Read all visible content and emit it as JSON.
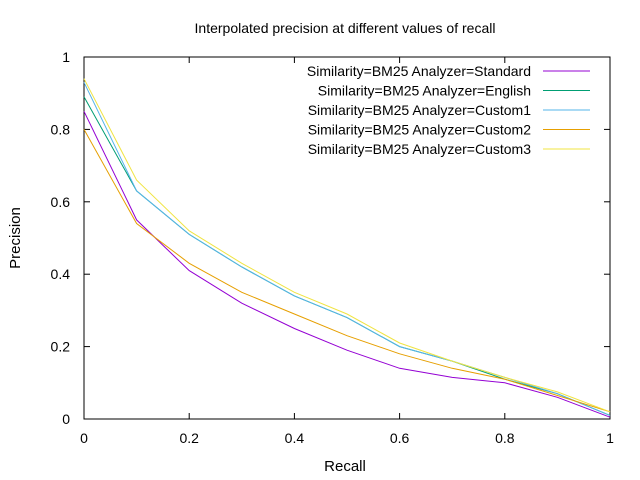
{
  "chart_data": {
    "type": "line",
    "title": "Interpolated precision at different values of recall",
    "xlabel": "Recall",
    "ylabel": "Precision",
    "xlim": [
      0,
      1
    ],
    "ylim": [
      0,
      1
    ],
    "xticks": [
      "0",
      "0.2",
      "0.4",
      "0.6",
      "0.8",
      "1"
    ],
    "yticks": [
      "0",
      "0.2",
      "0.4",
      "0.6",
      "0.8",
      "1"
    ],
    "legend_position": "top-right",
    "grid": false,
    "x": [
      0,
      0.1,
      0.2,
      0.3,
      0.4,
      0.5,
      0.6,
      0.7,
      0.8,
      0.9,
      1.0
    ],
    "series": [
      {
        "name": "Similarity=BM25 Analyzer=Standard",
        "color": "#9400d3",
        "values": [
          0.85,
          0.55,
          0.41,
          0.32,
          0.25,
          0.19,
          0.14,
          0.115,
          0.1,
          0.06,
          0.005
        ]
      },
      {
        "name": "Similarity=BM25 Analyzer=English",
        "color": "#009e73",
        "values": [
          0.89,
          0.63,
          0.51,
          0.42,
          0.34,
          0.28,
          0.2,
          0.16,
          0.11,
          0.07,
          0.01
        ]
      },
      {
        "name": "Similarity=BM25 Analyzer=Custom1",
        "color": "#56b4e9",
        "values": [
          0.93,
          0.63,
          0.51,
          0.42,
          0.34,
          0.28,
          0.2,
          0.16,
          0.115,
          0.07,
          0.01
        ]
      },
      {
        "name": "Similarity=BM25 Analyzer=Custom2",
        "color": "#e69f00",
        "values": [
          0.8,
          0.54,
          0.43,
          0.35,
          0.29,
          0.23,
          0.18,
          0.14,
          0.11,
          0.065,
          0.02
        ]
      },
      {
        "name": "Similarity=BM25 Analyzer=Custom3",
        "color": "#f0e442",
        "values": [
          0.94,
          0.66,
          0.52,
          0.43,
          0.35,
          0.29,
          0.21,
          0.16,
          0.115,
          0.075,
          0.02
        ]
      }
    ]
  }
}
